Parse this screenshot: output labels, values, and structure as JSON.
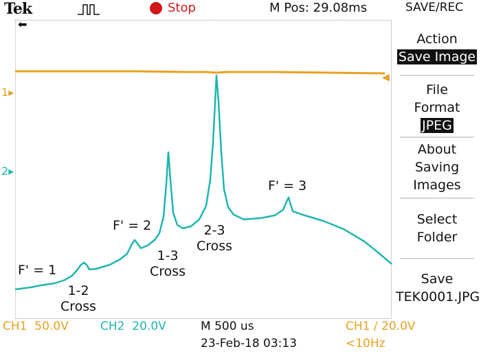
{
  "header": {
    "brand": "Tek",
    "trigger_state_icon": "trigger-status-icon",
    "run_state": "Stop",
    "run_state_color": "#d01818",
    "m_pos": "M Pos: 29.08ms",
    "menu_title": "SAVE/REC"
  },
  "graticule": {
    "ch1_marker": "1",
    "ch2_marker": "2",
    "ch1_color": "#e8a020",
    "ch2_color": "#1fb5b0"
  },
  "annotations": [
    {
      "text": "F' = 1"
    },
    {
      "text": "1-2\nCross"
    },
    {
      "text": "F' = 2"
    },
    {
      "text": "1-3\nCross"
    },
    {
      "text": "2-3\nCross"
    },
    {
      "text": "F' = 3"
    }
  ],
  "side_menu": {
    "action_label": "Action",
    "action_value": "Save Image",
    "file_label": "File",
    "format_label": "Format",
    "format_value": "JPEG",
    "about_1": "About",
    "about_2": "Saving",
    "about_3": "Images",
    "select_1": "Select",
    "select_2": "Folder",
    "save_1": "Save",
    "save_2": "TEK0001.JPG"
  },
  "footer": {
    "ch1_label": "CH1",
    "ch1_scale": "50.0V",
    "ch2_label": "CH2",
    "ch2_scale": "20.0V",
    "timebase": "M 500 us",
    "date": "23-Feb-18 03:13",
    "trigger_label": "CH1",
    "trigger_slope": "∕",
    "trigger_level": "20.0V",
    "trigger_freq": "<10Hz"
  }
}
